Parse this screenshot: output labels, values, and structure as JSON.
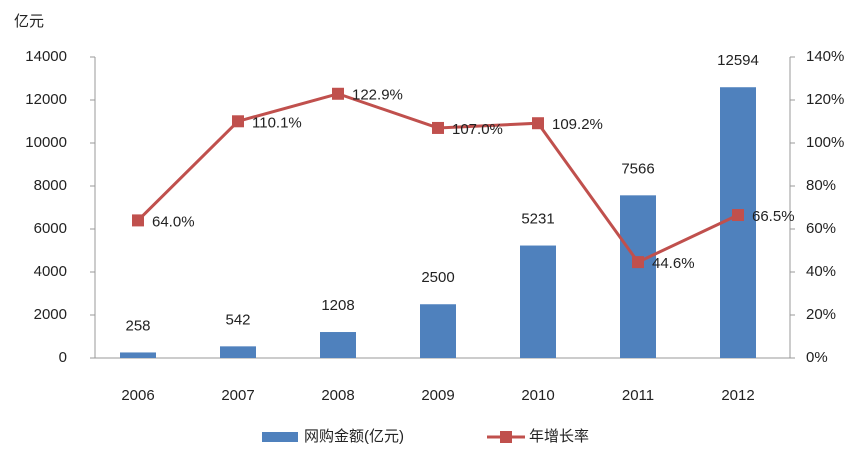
{
  "chart_data": {
    "type": "bar",
    "y_label": "亿元",
    "categories": [
      "2006",
      "2007",
      "2008",
      "2009",
      "2010",
      "2011",
      "2012"
    ],
    "series": [
      {
        "name": "网购金额(亿元)",
        "type": "bar",
        "color": "#4f81bd",
        "values": [
          258,
          542,
          1208,
          2500,
          5231,
          7566,
          12594
        ]
      },
      {
        "name": "年增长率",
        "type": "line",
        "axis": "y2",
        "color": "#c0504d",
        "values": [
          64.0,
          110.1,
          122.9,
          107.0,
          109.2,
          44.6,
          66.5
        ],
        "value_labels": [
          "64.0%",
          "110.1%",
          "122.9%",
          "107.0%",
          "109.2%",
          "44.6%",
          "66.5%"
        ]
      }
    ],
    "ylim": [
      0,
      14000
    ],
    "yticks": [
      0,
      2000,
      4000,
      6000,
      8000,
      10000,
      12000,
      14000
    ],
    "y2lim": [
      0,
      140
    ],
    "y2ticks": [
      {
        "value": 0,
        "label": "0%"
      },
      {
        "value": 20,
        "label": "20%"
      },
      {
        "value": 40,
        "label": "40%"
      },
      {
        "value": 60,
        "label": "60%"
      },
      {
        "value": 80,
        "label": "80%"
      },
      {
        "value": 100,
        "label": "100%"
      },
      {
        "value": 120,
        "label": "120%"
      },
      {
        "value": 140,
        "label": "140%"
      }
    ],
    "legend": "bottom"
  }
}
